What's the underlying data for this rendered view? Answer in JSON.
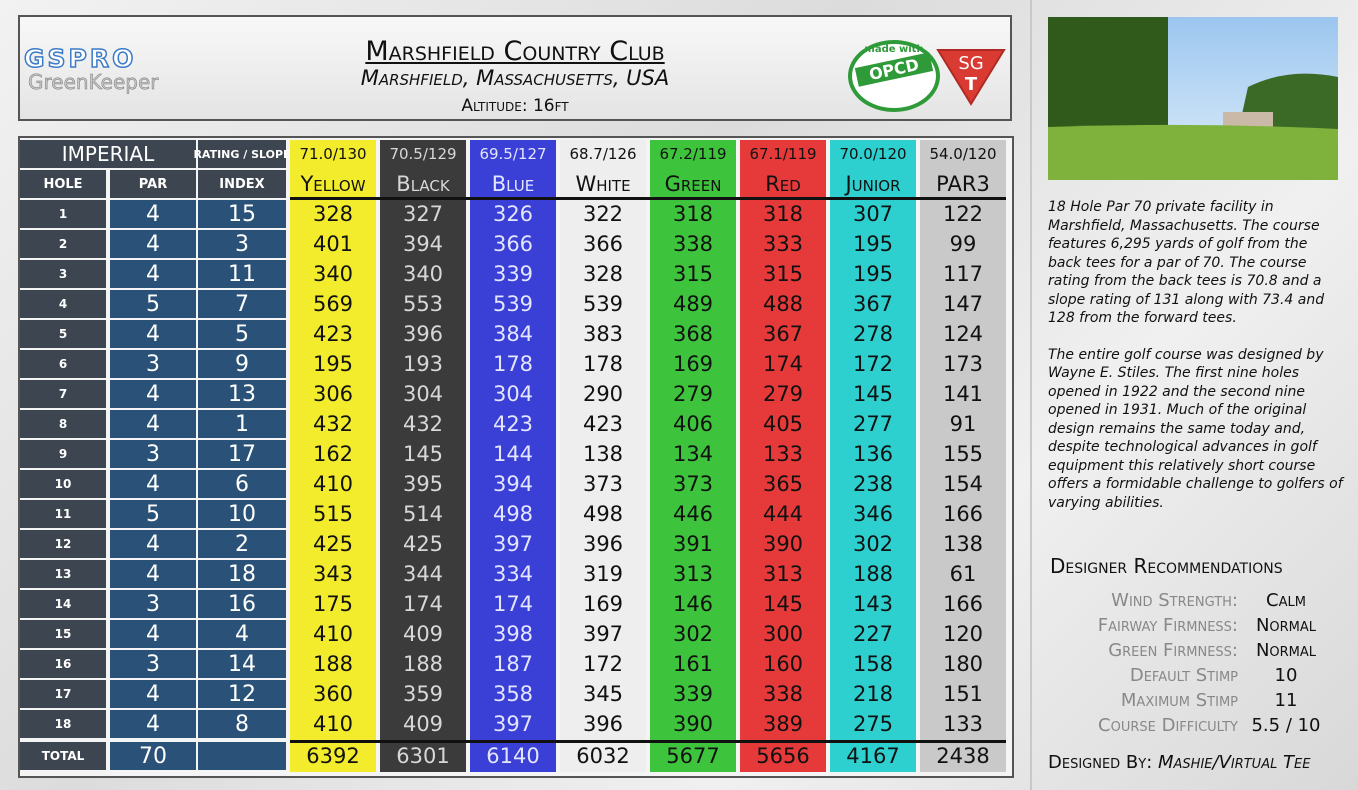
{
  "header": {
    "logo_top": "GSPRO",
    "logo_bottom": "GreenKeeper",
    "title": "Marshfield Country Club",
    "subtitle": "Marshfield, Massachusetts, USA",
    "altitude": "Altitude: 16ft",
    "badge_top": "made with",
    "badge_main": "OPCD",
    "badge2_top": "SG",
    "badge2_bottom": "T"
  },
  "scorecard": {
    "system": "IMPERIAL",
    "rating_header": "RATING / SLOPE",
    "columns": [
      "HOLE",
      "PAR",
      "INDEX"
    ],
    "holes": [
      1,
      2,
      3,
      4,
      5,
      6,
      7,
      8,
      9,
      10,
      11,
      12,
      13,
      14,
      15,
      16,
      17,
      18
    ],
    "par": [
      4,
      4,
      4,
      5,
      4,
      3,
      4,
      4,
      3,
      4,
      5,
      4,
      4,
      3,
      4,
      3,
      4,
      4
    ],
    "index": [
      15,
      3,
      11,
      7,
      5,
      9,
      13,
      1,
      17,
      6,
      10,
      2,
      18,
      16,
      4,
      14,
      12,
      8
    ],
    "total_label": "TOTAL",
    "par_total": 70,
    "tees": [
      {
        "name": "Yellow",
        "rating": "71.0/130",
        "color": "#f2ec2c",
        "text_color": "#111",
        "yards": [
          328,
          401,
          340,
          569,
          423,
          195,
          306,
          432,
          162,
          410,
          515,
          425,
          343,
          175,
          410,
          188,
          360,
          410
        ],
        "total": 6392
      },
      {
        "name": "Black",
        "rating": "70.5/129",
        "color": "#3b3b3b",
        "text_color": "#d8d8d8",
        "yards": [
          327,
          394,
          340,
          553,
          396,
          193,
          304,
          432,
          145,
          395,
          514,
          425,
          344,
          174,
          409,
          188,
          359,
          409
        ],
        "total": 6301
      },
      {
        "name": "Blue",
        "rating": "69.5/127",
        "color": "#3a3fd6",
        "text_color": "#e4e6ff",
        "yards": [
          326,
          366,
          339,
          539,
          384,
          178,
          304,
          423,
          144,
          394,
          498,
          397,
          334,
          174,
          398,
          187,
          358,
          397
        ],
        "total": 6140
      },
      {
        "name": "White",
        "rating": "68.7/126",
        "color": "#eeeeee",
        "text_color": "#111",
        "yards": [
          322,
          366,
          328,
          539,
          383,
          178,
          290,
          423,
          138,
          373,
          498,
          396,
          319,
          169,
          397,
          172,
          345,
          396
        ],
        "total": 6032
      },
      {
        "name": "Green",
        "rating": "67.2/119",
        "color": "#3ec43c",
        "text_color": "#111",
        "yards": [
          318,
          338,
          315,
          489,
          368,
          169,
          279,
          406,
          134,
          373,
          446,
          391,
          313,
          146,
          302,
          161,
          339,
          390
        ],
        "total": 5677
      },
      {
        "name": "Red",
        "rating": "67.1/119",
        "color": "#e63a3a",
        "text_color": "#111",
        "yards": [
          318,
          333,
          315,
          488,
          367,
          174,
          279,
          405,
          133,
          365,
          444,
          390,
          313,
          145,
          300,
          160,
          338,
          389
        ],
        "total": 5656
      },
      {
        "name": "Junior",
        "rating": "70.0/120",
        "color": "#2ecfcf",
        "text_color": "#111",
        "yards": [
          307,
          195,
          195,
          367,
          278,
          172,
          145,
          277,
          136,
          238,
          346,
          302,
          188,
          143,
          227,
          158,
          218,
          275
        ],
        "total": 4167
      },
      {
        "name": "PAR3",
        "rating": "54.0/120",
        "color": "#c9c9c9",
        "text_color": "#111",
        "yards": [
          122,
          99,
          117,
          147,
          124,
          173,
          141,
          91,
          155,
          154,
          166,
          138,
          61,
          166,
          120,
          180,
          151,
          133
        ],
        "total": 2438
      }
    ]
  },
  "sidebar": {
    "description": [
      "18 Hole Par 70 private facility in Marshfield, Massachusetts. The course features 6,295 yards of golf from the back tees for a par of 70. The course rating from the back tees is 70.8 and a slope rating of 131 along with 73.4 and 128 from the forward tees.",
      "The entire golf course was designed by Wayne E. Stiles. The first nine holes opened in 1922 and the second nine opened in 1931. Much of the original design remains the same today and, despite technological advances in golf equipment this relatively short course offers a formidable challenge to golfers of varying abilities."
    ],
    "recommendations_title": "Designer Recommendations",
    "recommendations": [
      {
        "label": "Wind Strength:",
        "value": "Calm"
      },
      {
        "label": "Fairway Firmness:",
        "value": "Normal"
      },
      {
        "label": "Green Firmness:",
        "value": "Normal"
      },
      {
        "label": "Default Stimp",
        "value": "10"
      },
      {
        "label": "Maximum Stimp",
        "value": "11"
      },
      {
        "label": "Course Difficulty",
        "value": "5.5 / 10"
      }
    ],
    "designed_by_label": "Designed By:",
    "designed_by": "Mashie/Virtual Tee"
  }
}
